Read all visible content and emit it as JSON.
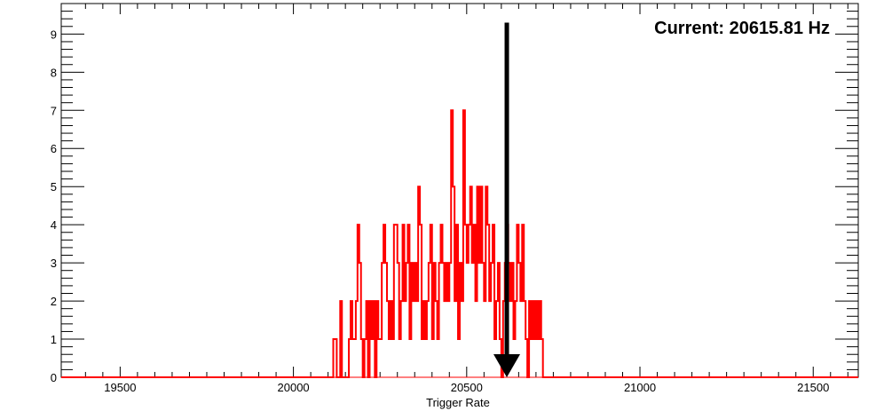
{
  "chart_data": {
    "type": "histogram",
    "title": "",
    "xlabel": "Trigger Rate",
    "ylabel": "",
    "xlim": [
      19330,
      21630
    ],
    "ylim": [
      0,
      9.8
    ],
    "x_ticks": [
      19500,
      20000,
      20500,
      21000,
      21500
    ],
    "y_ticks": [
      0,
      1,
      2,
      3,
      4,
      5,
      6,
      7,
      8,
      9
    ],
    "series": [
      {
        "color": "#ff0000",
        "bin_width": 5,
        "bins": [
          [
            20115,
            1
          ],
          [
            20125,
            0
          ],
          [
            20135,
            2
          ],
          [
            20140,
            0
          ],
          [
            20160,
            1
          ],
          [
            20165,
            2
          ],
          [
            20170,
            1
          ],
          [
            20180,
            2
          ],
          [
            20185,
            4
          ],
          [
            20190,
            3
          ],
          [
            20195,
            1
          ],
          [
            20200,
            0
          ],
          [
            20205,
            1
          ],
          [
            20210,
            2
          ],
          [
            20215,
            0
          ],
          [
            20220,
            2
          ],
          [
            20225,
            1
          ],
          [
            20230,
            2
          ],
          [
            20235,
            0
          ],
          [
            20240,
            2
          ],
          [
            20245,
            1
          ],
          [
            20255,
            3
          ],
          [
            20260,
            4
          ],
          [
            20265,
            3
          ],
          [
            20270,
            2
          ],
          [
            20275,
            1
          ],
          [
            20280,
            2
          ],
          [
            20285,
            1
          ],
          [
            20290,
            4
          ],
          [
            20300,
            3
          ],
          [
            20305,
            1
          ],
          [
            20310,
            2
          ],
          [
            20315,
            4
          ],
          [
            20320,
            2
          ],
          [
            20325,
            3
          ],
          [
            20330,
            4
          ],
          [
            20335,
            1
          ],
          [
            20340,
            3
          ],
          [
            20345,
            2
          ],
          [
            20350,
            3
          ],
          [
            20355,
            2
          ],
          [
            20360,
            5
          ],
          [
            20365,
            4
          ],
          [
            20370,
            1
          ],
          [
            20375,
            2
          ],
          [
            20380,
            1
          ],
          [
            20385,
            2
          ],
          [
            20390,
            3
          ],
          [
            20395,
            4
          ],
          [
            20400,
            1
          ],
          [
            20405,
            3
          ],
          [
            20410,
            2
          ],
          [
            20415,
            1
          ],
          [
            20420,
            3
          ],
          [
            20425,
            4
          ],
          [
            20430,
            3
          ],
          [
            20435,
            2
          ],
          [
            20440,
            3
          ],
          [
            20445,
            2
          ],
          [
            20450,
            3
          ],
          [
            20455,
            7
          ],
          [
            20460,
            5
          ],
          [
            20465,
            2
          ],
          [
            20470,
            4
          ],
          [
            20475,
            1
          ],
          [
            20480,
            3
          ],
          [
            20485,
            2
          ],
          [
            20490,
            7
          ],
          [
            20495,
            4
          ],
          [
            20500,
            3
          ],
          [
            20505,
            4
          ],
          [
            20510,
            5
          ],
          [
            20515,
            3
          ],
          [
            20520,
            4
          ],
          [
            20525,
            2
          ],
          [
            20530,
            5
          ],
          [
            20535,
            3
          ],
          [
            20540,
            5
          ],
          [
            20545,
            3
          ],
          [
            20550,
            2
          ],
          [
            20555,
            5
          ],
          [
            20560,
            4
          ],
          [
            20565,
            2
          ],
          [
            20570,
            3
          ],
          [
            20575,
            4
          ],
          [
            20580,
            1
          ],
          [
            20585,
            2
          ],
          [
            20590,
            3
          ],
          [
            20595,
            1
          ],
          [
            20600,
            0
          ],
          [
            20605,
            2
          ],
          [
            20610,
            3
          ],
          [
            20615,
            4
          ],
          [
            20620,
            3
          ],
          [
            20625,
            2
          ],
          [
            20630,
            3
          ],
          [
            20635,
            1
          ],
          [
            20640,
            2
          ],
          [
            20645,
            4
          ],
          [
            20650,
            3
          ],
          [
            20655,
            2
          ],
          [
            20660,
            4
          ],
          [
            20665,
            2
          ],
          [
            20670,
            1
          ],
          [
            20675,
            0
          ],
          [
            20680,
            2
          ],
          [
            20685,
            1
          ],
          [
            20690,
            2
          ],
          [
            20695,
            1
          ],
          [
            20700,
            2
          ],
          [
            20705,
            1
          ],
          [
            20710,
            2
          ],
          [
            20715,
            1
          ],
          [
            20720,
            0
          ]
        ]
      }
    ],
    "marker": {
      "value": 20615.81,
      "label": "Current: 20615.81 Hz",
      "color": "#000000",
      "top_y": 9.3
    },
    "legend": "none",
    "grid": false
  }
}
